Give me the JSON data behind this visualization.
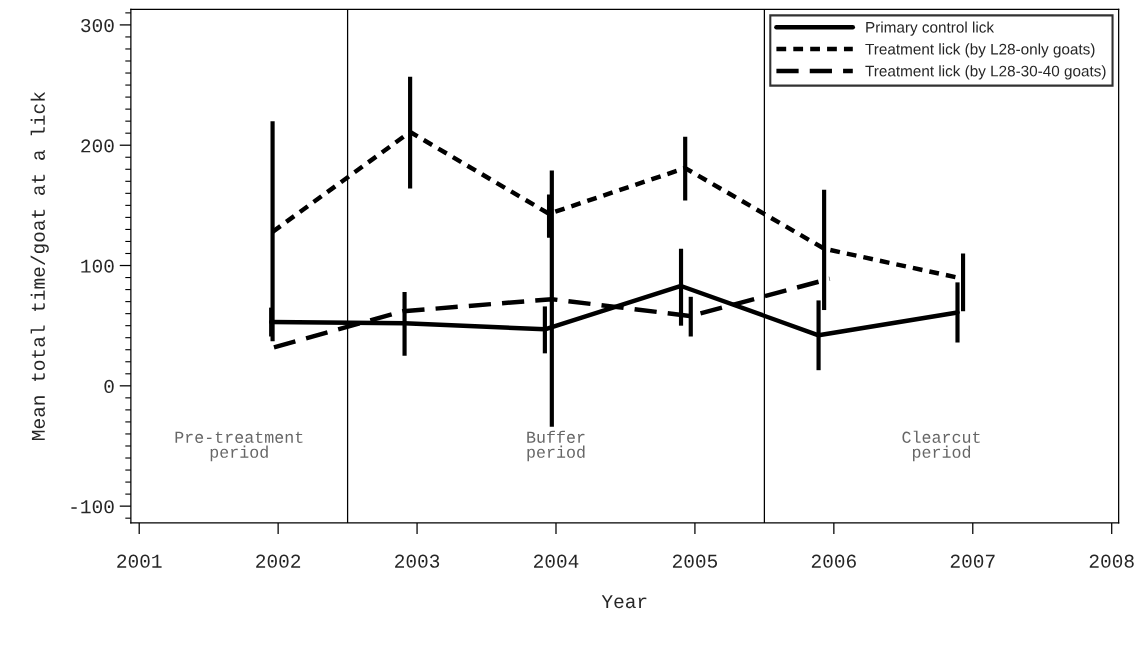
{
  "chart_data": {
    "type": "line",
    "xlabel": "Year",
    "ylabel": "Mean total time/goat at a lick",
    "xlim": [
      2000.94,
      2008.05
    ],
    "xticks": [
      2001,
      2002,
      2003,
      2004,
      2005,
      2006,
      2007,
      2008
    ],
    "ylim": [
      -114,
      313
    ],
    "yticks": [
      -100,
      0,
      100,
      200,
      300
    ],
    "legend": "top right",
    "grid": false,
    "series": [
      {
        "name": "Primary control lick",
        "color": "#000000",
        "line_style": "solid",
        "x": [
          2001.95,
          2002.91,
          2003.92,
          2004.9,
          2005.89,
          2006.89
        ],
        "values": [
          53,
          52,
          47,
          83,
          42,
          61
        ],
        "errors": [
          [
            41,
            65
          ],
          [
            25,
            78
          ],
          [
            27,
            66
          ],
          [
            50,
            114
          ],
          [
            13,
            71
          ],
          [
            36,
            86
          ]
        ]
      },
      {
        "name": "Treatment lick (by L28-only goats)",
        "color": "#000000",
        "line_style": "dotted",
        "x": [
          2001.96,
          2002.95,
          2003.95,
          2004.93,
          2005.93,
          2006.93
        ],
        "values": [
          128,
          211,
          143,
          181,
          114,
          89
        ],
        "errors": [
          [
            37,
            220
          ],
          [
            164,
            257
          ],
          [
            123,
            159
          ],
          [
            154,
            207
          ],
          [
            63,
            163
          ],
          [
            62,
            110
          ]
        ]
      },
      {
        "name": "Treatment lick (by L28-30-40 goats)",
        "color": "#000000",
        "line_style": "dashed",
        "x": [
          2001.97,
          2002.9,
          2003.97,
          2004.97,
          2005.97
        ],
        "values": [
          32,
          62,
          72,
          58,
          89
        ],
        "errors": [
          null,
          null,
          [
            -34,
            179
          ],
          [
            41,
            74
          ],
          null
        ]
      }
    ],
    "ref_lines": [
      {
        "axis": "x",
        "value": 2002.5,
        "color": "#000000"
      },
      {
        "axis": "x",
        "value": 2005.5,
        "color": "#000000"
      }
    ],
    "annotations": [
      "Pre-treatment\nperiod",
      "Buffer\nperiod",
      "Clearcut\nperiod"
    ]
  }
}
